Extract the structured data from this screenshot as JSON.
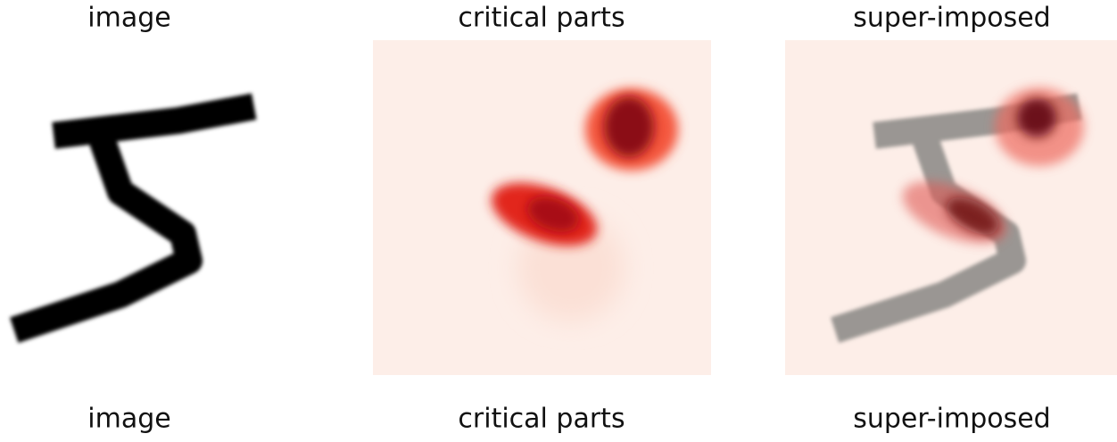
{
  "panels": [
    {
      "title": "image",
      "caption": "image"
    },
    {
      "title": "critical parts",
      "caption": "critical parts"
    },
    {
      "title": "super-imposed",
      "caption": "super-imposed"
    }
  ]
}
